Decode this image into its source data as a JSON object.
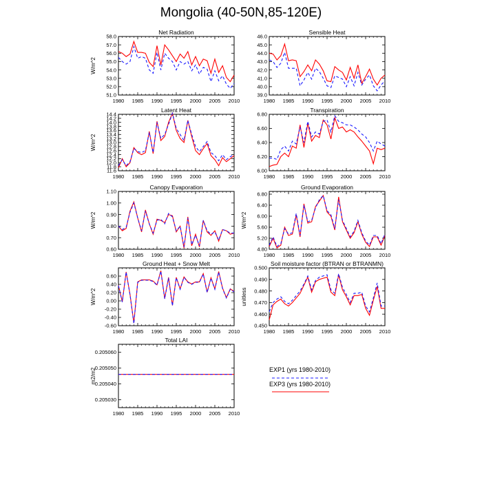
{
  "page_title": "Mongolia (40-50N,85-120E)",
  "colors": {
    "exp1": "#1a1aff",
    "exp3": "#ff0000",
    "axis": "#000000"
  },
  "legend": {
    "exp1_label": "EXP1 (yrs 1980-2010)",
    "exp3_label": "EXP3 (yrs 1980-2010)"
  },
  "chart_data": [
    {
      "type": "line",
      "title": "Net Radiation",
      "ylabel": "W/m^2",
      "xlim": [
        1980,
        2010
      ],
      "ylim": [
        51.0,
        58.0
      ],
      "xticks": [
        "1980",
        "1985",
        "1990",
        "1995",
        "2000",
        "2005",
        "2010"
      ],
      "yticks": [
        "51.0",
        "52.0",
        "53.0",
        "54.0",
        "55.0",
        "56.0",
        "57.0",
        "58.0"
      ],
      "x": [
        1980,
        1981,
        1982,
        1983,
        1984,
        1985,
        1986,
        1987,
        1988,
        1989,
        1990,
        1991,
        1992,
        1993,
        1994,
        1995,
        1996,
        1997,
        1998,
        1999,
        2000,
        2001,
        2002,
        2003,
        2004,
        2005,
        2006,
        2007,
        2008,
        2009,
        2010
      ],
      "series": [
        {
          "name": "EXP1 (yrs 1980-2010)",
          "values": [
            55.5,
            55.0,
            54.7,
            55.0,
            56.8,
            55.4,
            55.6,
            55.4,
            54.0,
            53.6,
            56.1,
            54.0,
            56.0,
            55.4,
            55.0,
            54.0,
            55.0,
            54.7,
            55.0,
            53.9,
            54.6,
            53.5,
            54.3,
            54.1,
            52.6,
            53.9,
            52.7,
            53.3,
            52.3,
            51.8,
            52.4
          ]
        },
        {
          "name": "EXP3 (yrs 1980-2010)",
          "values": [
            56.2,
            56.0,
            55.6,
            55.9,
            57.4,
            56.1,
            56.1,
            56.0,
            54.9,
            54.4,
            56.9,
            54.6,
            57.0,
            56.4,
            55.7,
            55.0,
            55.9,
            55.4,
            56.2,
            54.6,
            55.6,
            54.5,
            55.3,
            55.1,
            53.6,
            55.3,
            53.7,
            54.5,
            53.1,
            52.6,
            53.4
          ]
        }
      ]
    },
    {
      "type": "line",
      "title": "Sensible Heat",
      "ylabel": "",
      "xlim": [
        1980,
        2010
      ],
      "ylim": [
        39.0,
        46.0
      ],
      "xticks": [
        "1980",
        "1985",
        "1990",
        "1995",
        "2000",
        "2005",
        "2010"
      ],
      "yticks": [
        "39.0",
        "40.0",
        "41.0",
        "42.0",
        "43.0",
        "44.0",
        "45.0",
        "46.0"
      ],
      "x": [
        1980,
        1981,
        1982,
        1983,
        1984,
        1985,
        1986,
        1987,
        1988,
        1989,
        1990,
        1991,
        1992,
        1993,
        1994,
        1995,
        1996,
        1997,
        1998,
        1999,
        2000,
        2001,
        2002,
        2003,
        2004,
        2005,
        2006,
        2007,
        2008,
        2009,
        2010
      ],
      "series": [
        {
          "name": "EXP1 (yrs 1980-2010)",
          "values": [
            43.2,
            43.0,
            42.3,
            42.8,
            44.1,
            42.2,
            42.2,
            42.2,
            40.1,
            40.8,
            41.7,
            40.9,
            42.2,
            41.8,
            41.0,
            40.1,
            39.9,
            41.3,
            41.1,
            40.9,
            40.0,
            41.2,
            40.1,
            41.7,
            40.2,
            40.9,
            41.4,
            40.1,
            39.5,
            40.2,
            40.7
          ]
        },
        {
          "name": "EXP3 (yrs 1980-2010)",
          "values": [
            44.0,
            43.9,
            43.2,
            43.7,
            45.1,
            43.1,
            43.2,
            43.1,
            41.2,
            41.8,
            42.6,
            41.9,
            43.2,
            42.7,
            41.9,
            40.7,
            40.6,
            42.4,
            42.0,
            41.7,
            40.8,
            42.3,
            41.0,
            42.6,
            40.4,
            41.2,
            42.1,
            40.9,
            40.2,
            41.0,
            41.4
          ]
        }
      ]
    },
    {
      "type": "line",
      "title": "Latent Heat",
      "ylabel": "W/m^2",
      "xlim": [
        1980,
        2010
      ],
      "ylim": [
        11.6,
        14.4
      ],
      "xticks": [
        "1980",
        "1985",
        "1990",
        "1995",
        "2000",
        "2005",
        "2010"
      ],
      "yticks": [
        "11.6",
        "11.8",
        "12.0",
        "12.2",
        "12.4",
        "12.6",
        "12.8",
        "13.0",
        "13.2",
        "13.4",
        "13.6",
        "13.8",
        "14.0",
        "14.2",
        "14.4"
      ],
      "x": [
        1980,
        1981,
        1982,
        1983,
        1984,
        1985,
        1986,
        1987,
        1988,
        1989,
        1990,
        1991,
        1992,
        1993,
        1994,
        1995,
        1996,
        1997,
        1998,
        1999,
        2000,
        2001,
        2002,
        2003,
        2004,
        2005,
        2006,
        2007,
        2008,
        2009,
        2010
      ],
      "series": [
        {
          "name": "EXP1 (yrs 1980-2010)",
          "values": [
            11.85,
            12.15,
            11.85,
            12.05,
            12.7,
            12.55,
            12.5,
            12.6,
            13.5,
            12.5,
            14.0,
            13.2,
            13.4,
            13.9,
            14.45,
            13.7,
            13.4,
            13.1,
            14.1,
            13.4,
            12.8,
            12.55,
            12.8,
            13.05,
            12.5,
            12.35,
            12.1,
            12.4,
            12.15,
            12.3,
            12.4
          ]
        },
        {
          "name": "EXP3 (yrs 1980-2010)",
          "values": [
            11.75,
            12.2,
            11.8,
            12.0,
            12.75,
            12.5,
            12.4,
            12.5,
            13.55,
            12.45,
            14.05,
            13.1,
            13.3,
            14.0,
            14.45,
            13.6,
            13.2,
            13.0,
            14.1,
            13.3,
            12.6,
            12.4,
            12.7,
            12.95,
            12.35,
            12.15,
            11.85,
            12.25,
            12.05,
            12.2,
            12.35
          ]
        }
      ]
    },
    {
      "type": "line",
      "title": "Transpiration",
      "ylabel": "",
      "xlim": [
        1980,
        2010
      ],
      "ylim": [
        6.0,
        6.8
      ],
      "xticks": [
        "1980",
        "1985",
        "1990",
        "1995",
        "2000",
        "2005",
        "2010"
      ],
      "yticks": [
        "6.00",
        "6.20",
        "6.40",
        "6.60",
        "6.80"
      ],
      "x": [
        1980,
        1981,
        1982,
        1983,
        1984,
        1985,
        1986,
        1987,
        1988,
        1989,
        1990,
        1991,
        1992,
        1993,
        1994,
        1995,
        1996,
        1997,
        1998,
        1999,
        2000,
        2001,
        2002,
        2003,
        2004,
        2005,
        2006,
        2007,
        2008,
        2009,
        2010
      ],
      "series": [
        {
          "name": "EXP1 (yrs 1980-2010)",
          "values": [
            6.18,
            6.18,
            6.16,
            6.3,
            6.35,
            6.28,
            6.42,
            6.38,
            6.62,
            6.4,
            6.7,
            6.48,
            6.55,
            6.52,
            6.7,
            6.72,
            6.55,
            6.78,
            6.7,
            6.68,
            6.65,
            6.65,
            6.62,
            6.58,
            6.52,
            6.48,
            6.4,
            6.28,
            6.42,
            6.38,
            6.35
          ]
        },
        {
          "name": "EXP3 (yrs 1980-2010)",
          "values": [
            6.06,
            6.08,
            6.09,
            6.2,
            6.25,
            6.2,
            6.35,
            6.32,
            6.65,
            6.33,
            6.67,
            6.42,
            6.5,
            6.47,
            6.72,
            6.65,
            6.45,
            6.75,
            6.6,
            6.62,
            6.55,
            6.58,
            6.55,
            6.48,
            6.42,
            6.35,
            6.28,
            6.1,
            6.32,
            6.3,
            6.32
          ]
        }
      ]
    },
    {
      "type": "line",
      "title": "Canopy Evaporation",
      "ylabel": "W/m^2",
      "xlim": [
        1980,
        2010
      ],
      "ylim": [
        0.6,
        1.1
      ],
      "xticks": [
        "1980",
        "1985",
        "1990",
        "1995",
        "2000",
        "2005",
        "2010"
      ],
      "yticks": [
        "0.60",
        "0.70",
        "0.80",
        "0.90",
        "1.00",
        "1.10"
      ],
      "x": [
        1980,
        1981,
        1982,
        1983,
        1984,
        1985,
        1986,
        1987,
        1988,
        1989,
        1990,
        1991,
        1992,
        1993,
        1994,
        1995,
        1996,
        1997,
        1998,
        1999,
        2000,
        2001,
        2002,
        2003,
        2004,
        2005,
        2006,
        2007,
        2008,
        2009,
        2010
      ],
      "series": [
        {
          "name": "EXP1 (yrs 1980-2010)",
          "values": [
            0.8,
            0.77,
            0.79,
            0.92,
            1.0,
            0.87,
            0.76,
            0.93,
            0.82,
            0.74,
            0.85,
            0.86,
            0.82,
            0.91,
            0.88,
            0.76,
            0.8,
            0.62,
            0.87,
            0.64,
            0.72,
            0.63,
            0.85,
            0.76,
            0.73,
            0.75,
            0.68,
            0.77,
            0.76,
            0.74,
            0.74
          ]
        },
        {
          "name": "EXP3 (yrs 1980-2010)",
          "values": [
            0.8,
            0.76,
            0.78,
            0.93,
            1.01,
            0.87,
            0.75,
            0.94,
            0.82,
            0.73,
            0.86,
            0.85,
            0.83,
            0.9,
            0.89,
            0.75,
            0.8,
            0.61,
            0.88,
            0.63,
            0.73,
            0.62,
            0.85,
            0.75,
            0.72,
            0.76,
            0.67,
            0.77,
            0.76,
            0.73,
            0.74
          ]
        }
      ]
    },
    {
      "type": "line",
      "title": "Ground Evaporation",
      "ylabel": "W/m^2",
      "xlim": [
        1980,
        2010
      ],
      "ylim": [
        4.8,
        6.9
      ],
      "xticks": [
        "1980",
        "1985",
        "1990",
        "1995",
        "2000",
        "2005",
        "2010"
      ],
      "yticks": [
        "4.80",
        "5.20",
        "5.60",
        "6.00",
        "6.40",
        "6.80"
      ],
      "x": [
        1980,
        1981,
        1982,
        1983,
        1984,
        1985,
        1986,
        1987,
        1988,
        1989,
        1990,
        1991,
        1992,
        1993,
        1994,
        1995,
        1996,
        1997,
        1998,
        1999,
        2000,
        2001,
        2002,
        2003,
        2004,
        2005,
        2006,
        2007,
        2008,
        2009,
        2010
      ],
      "series": [
        {
          "name": "EXP1 (yrs 1980-2010)",
          "values": [
            4.95,
            5.25,
            4.9,
            5.0,
            5.55,
            5.35,
            5.4,
            6.1,
            5.3,
            6.4,
            5.8,
            5.85,
            6.3,
            6.6,
            6.75,
            6.2,
            6.05,
            5.55,
            6.6,
            5.85,
            5.55,
            5.25,
            5.45,
            5.85,
            5.4,
            5.1,
            4.95,
            5.3,
            5.3,
            5.0,
            5.35
          ]
        },
        {
          "name": "EXP3 (yrs 1980-2010)",
          "values": [
            4.9,
            5.2,
            4.85,
            4.95,
            5.6,
            5.3,
            5.35,
            6.05,
            5.25,
            6.45,
            5.75,
            5.8,
            6.35,
            6.55,
            6.75,
            6.15,
            6.0,
            5.5,
            6.7,
            5.8,
            5.5,
            5.2,
            5.4,
            5.8,
            5.35,
            5.05,
            4.9,
            5.25,
            5.25,
            4.95,
            5.3
          ]
        }
      ]
    },
    {
      "type": "line",
      "title": "Ground Heat + Snow Melt",
      "ylabel": "W/m^2",
      "xlim": [
        1980,
        2010
      ],
      "ylim": [
        -0.6,
        0.8
      ],
      "xticks": [
        "1980",
        "1985",
        "1990",
        "1995",
        "2000",
        "2005",
        "2010"
      ],
      "yticks": [
        "-0.60",
        "-0.40",
        "-0.20",
        "0.00",
        "0.20",
        "0.40",
        "0.60"
      ],
      "x": [
        1980,
        1981,
        1982,
        1983,
        1984,
        1985,
        1986,
        1987,
        1988,
        1989,
        1990,
        1991,
        1992,
        1993,
        1994,
        1995,
        1996,
        1997,
        1998,
        1999,
        2000,
        2001,
        2002,
        2003,
        2004,
        2005,
        2006,
        2007,
        2008,
        2009,
        2010
      ],
      "series": [
        {
          "name": "EXP1 (yrs 1980-2010)",
          "values": [
            0.37,
            -0.03,
            0.7,
            0.15,
            -0.55,
            0.45,
            0.5,
            0.5,
            0.5,
            0.47,
            0.38,
            0.72,
            0.05,
            0.56,
            -0.12,
            0.56,
            0.28,
            0.57,
            0.45,
            0.4,
            0.45,
            0.45,
            0.65,
            0.2,
            0.55,
            0.28,
            0.7,
            0.3,
            0.07,
            0.28,
            0.22
          ]
        },
        {
          "name": "EXP3 (yrs 1980-2010)",
          "values": [
            0.38,
            -0.02,
            0.7,
            0.16,
            -0.53,
            0.46,
            0.51,
            0.51,
            0.51,
            0.48,
            0.39,
            0.73,
            0.06,
            0.57,
            -0.11,
            0.57,
            0.29,
            0.58,
            0.46,
            0.41,
            0.46,
            0.46,
            0.66,
            0.21,
            0.56,
            0.29,
            0.71,
            0.31,
            0.08,
            0.29,
            0.23
          ]
        }
      ]
    },
    {
      "type": "line",
      "title": "Soil moisture factor (BTRAN or BTRANMN)",
      "ylabel": "unitless",
      "xlim": [
        1980,
        2010
      ],
      "ylim": [
        0.45,
        0.5
      ],
      "xticks": [
        "1980",
        "1985",
        "1990",
        "1995",
        "2000",
        "2005",
        "2010"
      ],
      "yticks": [
        "0.450",
        "0.460",
        "0.470",
        "0.480",
        "0.490",
        "0.500"
      ],
      "x": [
        1980,
        1981,
        1982,
        1983,
        1984,
        1985,
        1986,
        1987,
        1988,
        1989,
        1990,
        1991,
        1992,
        1993,
        1994,
        1995,
        1996,
        1997,
        1998,
        1999,
        2000,
        2001,
        2002,
        2003,
        2004,
        2005,
        2006,
        2007,
        2008,
        2009,
        2010
      ],
      "series": [
        {
          "name": "EXP1 (yrs 1980-2010)",
          "values": [
            0.462,
            0.47,
            0.473,
            0.475,
            0.471,
            0.469,
            0.472,
            0.476,
            0.48,
            0.486,
            0.493,
            0.481,
            0.489,
            0.492,
            0.493,
            0.494,
            0.481,
            0.478,
            0.495,
            0.483,
            0.477,
            0.47,
            0.478,
            0.478,
            0.479,
            0.467,
            0.462,
            0.474,
            0.487,
            0.467,
            0.467
          ]
        },
        {
          "name": "EXP3 (yrs 1980-2010)",
          "values": [
            0.455,
            0.468,
            0.471,
            0.473,
            0.469,
            0.467,
            0.47,
            0.474,
            0.478,
            0.485,
            0.492,
            0.479,
            0.488,
            0.49,
            0.491,
            0.492,
            0.479,
            0.476,
            0.494,
            0.481,
            0.475,
            0.468,
            0.476,
            0.476,
            0.477,
            0.465,
            0.459,
            0.472,
            0.484,
            0.465,
            0.465
          ]
        }
      ]
    },
    {
      "type": "line",
      "title": "Total LAI",
      "ylabel": "m2/m2",
      "xlim": [
        1980,
        2010
      ],
      "ylim": [
        0.205025,
        0.205065
      ],
      "xticks": [
        "1980",
        "1985",
        "1990",
        "1995",
        "2000",
        "2005",
        "2010"
      ],
      "yticks": [
        "0.205030",
        "0.205040",
        "0.205050",
        "0.205060"
      ],
      "x": [
        1980,
        2010
      ],
      "series": [
        {
          "name": "EXP1 (yrs 1980-2010)",
          "values": [
            0.205046,
            0.205046
          ]
        },
        {
          "name": "EXP3 (yrs 1980-2010)",
          "values": [
            0.205046,
            0.205046
          ]
        }
      ]
    }
  ]
}
